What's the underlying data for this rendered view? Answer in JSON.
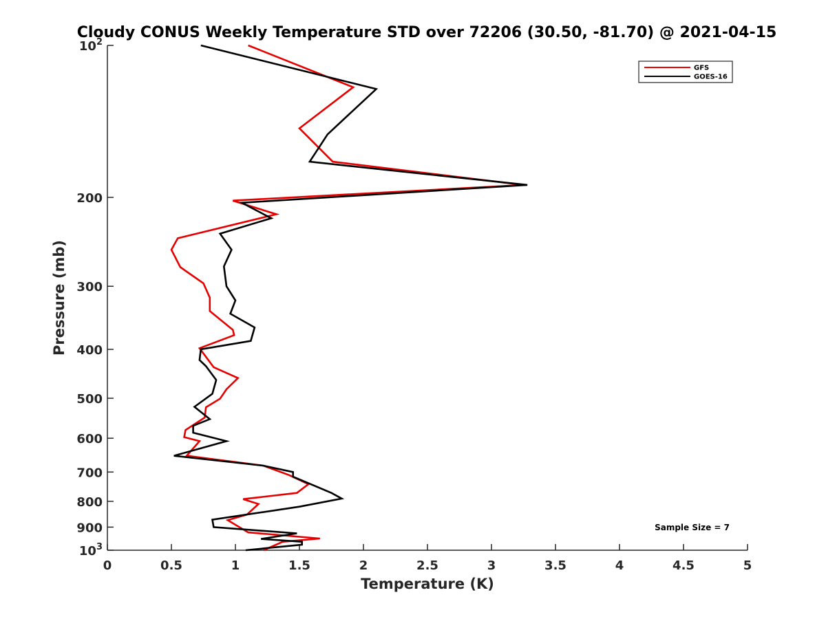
{
  "chart_data": {
    "type": "line",
    "title": "Cloudy CONUS Weekly Temperature STD over 72206 (30.50, -81.70) @ 2021-04-15",
    "xlabel": "Temperature (K)",
    "ylabel": "Pressure (mb)",
    "xlim": [
      0,
      5
    ],
    "ylim": [
      100,
      1000
    ],
    "yscale": "log",
    "y_reversed": true,
    "grid": false,
    "x_ticks": [
      {
        "value": 0,
        "label": "0"
      },
      {
        "value": 0.5,
        "label": "0.5"
      },
      {
        "value": 1,
        "label": "1"
      },
      {
        "value": 1.5,
        "label": "1.5"
      },
      {
        "value": 2,
        "label": "2"
      },
      {
        "value": 2.5,
        "label": "2.5"
      },
      {
        "value": 3,
        "label": "3"
      },
      {
        "value": 3.5,
        "label": "3.5"
      },
      {
        "value": 4,
        "label": "4"
      },
      {
        "value": 4.5,
        "label": "4.5"
      },
      {
        "value": 5,
        "label": "5"
      }
    ],
    "y_ticks": [
      {
        "value": 100,
        "base": "10",
        "exp": "2"
      },
      {
        "value": 200,
        "label": "200"
      },
      {
        "value": 300,
        "label": "300"
      },
      {
        "value": 400,
        "label": "400"
      },
      {
        "value": 500,
        "label": "500"
      },
      {
        "value": 600,
        "label": "600"
      },
      {
        "value": 700,
        "label": "700"
      },
      {
        "value": 800,
        "label": "800"
      },
      {
        "value": 900,
        "label": "900"
      },
      {
        "value": 1000,
        "base": "10",
        "exp": "3"
      }
    ],
    "legend_position": "top-right",
    "annotation": "Sample Size = 7",
    "series": [
      {
        "name": "GFS",
        "color": "#e60000",
        "points": [
          [
            1.1,
            100
          ],
          [
            1.92,
            121
          ],
          [
            1.5,
            146
          ],
          [
            1.76,
            170
          ],
          [
            3.25,
            189
          ],
          [
            0.98,
            203
          ],
          [
            1.32,
            216
          ],
          [
            0.55,
            241
          ],
          [
            0.5,
            254
          ],
          [
            0.57,
            275
          ],
          [
            0.75,
            296
          ],
          [
            0.8,
            316
          ],
          [
            0.8,
            336
          ],
          [
            0.98,
            366
          ],
          [
            0.99,
            375
          ],
          [
            0.72,
            398
          ],
          [
            0.83,
            434
          ],
          [
            1.02,
            456
          ],
          [
            0.93,
            480
          ],
          [
            0.88,
            501
          ],
          [
            0.77,
            521
          ],
          [
            0.76,
            546
          ],
          [
            0.61,
            578
          ],
          [
            0.6,
            597
          ],
          [
            0.72,
            608
          ],
          [
            0.62,
            650
          ],
          [
            1.22,
            680
          ],
          [
            1.42,
            710
          ],
          [
            1.57,
            740
          ],
          [
            1.48,
            770
          ],
          [
            1.06,
            792
          ],
          [
            1.18,
            810
          ],
          [
            1.09,
            850
          ],
          [
            0.94,
            872
          ],
          [
            1.1,
            922
          ],
          [
            1.66,
            948
          ],
          [
            1.37,
            962
          ],
          [
            1.22,
            1000
          ]
        ]
      },
      {
        "name": "GOES-16",
        "color": "#000000",
        "points": [
          [
            0.73,
            100
          ],
          [
            2.1,
            122
          ],
          [
            1.72,
            150
          ],
          [
            1.58,
            170
          ],
          [
            3.28,
            189
          ],
          [
            1.05,
            205
          ],
          [
            1.28,
            220
          ],
          [
            0.88,
            236
          ],
          [
            0.97,
            254
          ],
          [
            0.91,
            274
          ],
          [
            0.93,
            300
          ],
          [
            1.0,
            320
          ],
          [
            0.96,
            340
          ],
          [
            1.15,
            362
          ],
          [
            1.12,
            385
          ],
          [
            0.73,
            400
          ],
          [
            0.72,
            420
          ],
          [
            0.77,
            432
          ],
          [
            0.85,
            460
          ],
          [
            0.82,
            490
          ],
          [
            0.68,
            520
          ],
          [
            0.8,
            550
          ],
          [
            0.67,
            567
          ],
          [
            0.67,
            585
          ],
          [
            0.93,
            608
          ],
          [
            0.52,
            650
          ],
          [
            1.22,
            680
          ],
          [
            1.45,
            700
          ],
          [
            1.45,
            715
          ],
          [
            1.75,
            770
          ],
          [
            1.83,
            790
          ],
          [
            1.5,
            820
          ],
          [
            0.82,
            870
          ],
          [
            0.83,
            900
          ],
          [
            1.48,
            926
          ],
          [
            1.2,
            950
          ],
          [
            1.52,
            962
          ],
          [
            1.52,
            975
          ],
          [
            1.08,
            1000
          ]
        ]
      }
    ]
  }
}
